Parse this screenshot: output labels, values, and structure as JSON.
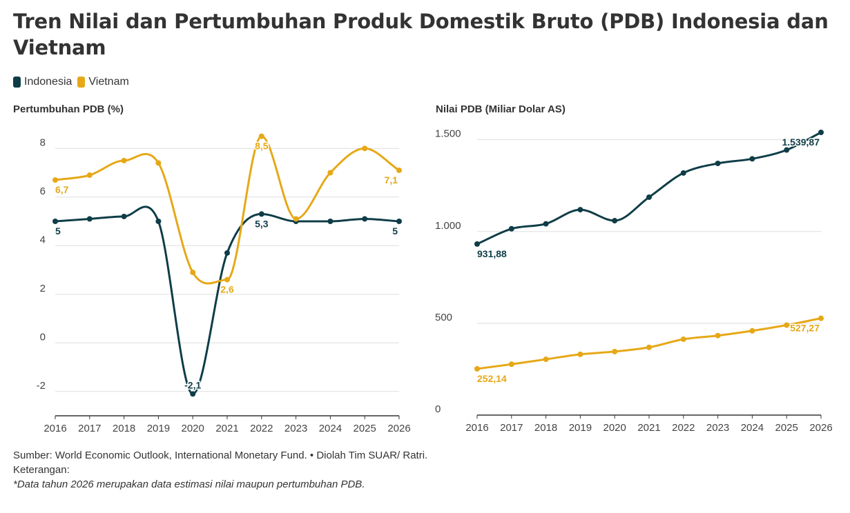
{
  "title": "Tren Nilai dan Pertumbuhan Produk Domestik Bruto (PDB) Indonesia dan Vietnam",
  "colors": {
    "indonesia": "#0f3d47",
    "vietnam": "#e6a817",
    "grid": "#dddddd",
    "axis": "#333333"
  },
  "legend": [
    {
      "label": "Indonesia",
      "color": "#0f3d47"
    },
    {
      "label": "Vietnam",
      "color": "#e6a817"
    }
  ],
  "chart_data": [
    {
      "type": "line",
      "title": "Pertumbuhan PDB (%)",
      "x": [
        2016,
        2017,
        2018,
        2019,
        2020,
        2021,
        2022,
        2023,
        2024,
        2025,
        2026
      ],
      "ylim": [
        -3,
        9
      ],
      "yticks": [
        -2,
        0,
        2,
        4,
        6,
        8
      ],
      "ytick_labels": [
        "-2",
        "0",
        "2",
        "4",
        "6",
        "8"
      ],
      "grid": true,
      "series": [
        {
          "name": "Indonesia",
          "values": [
            5.0,
            5.1,
            5.2,
            5.0,
            -2.1,
            3.7,
            5.3,
            5.0,
            5.0,
            5.1,
            5.0
          ],
          "labels": [
            {
              "index": 0,
              "text": "5",
              "pos": "below"
            },
            {
              "index": 4,
              "text": "-2,1",
              "pos": "above"
            },
            {
              "index": 6,
              "text": "5,3",
              "pos": "below"
            },
            {
              "index": 10,
              "text": "5",
              "pos": "below"
            }
          ]
        },
        {
          "name": "Vietnam",
          "values": [
            6.7,
            6.9,
            7.5,
            7.4,
            2.9,
            2.6,
            8.5,
            5.1,
            7.0,
            8.0,
            7.1
          ],
          "labels": [
            {
              "index": 0,
              "text": "6,7",
              "pos": "below"
            },
            {
              "index": 5,
              "text": "2,6",
              "pos": "below"
            },
            {
              "index": 6,
              "text": "8,5",
              "pos": "below"
            },
            {
              "index": 10,
              "text": "7,1",
              "pos": "below"
            }
          ]
        }
      ]
    },
    {
      "type": "line",
      "title": "Nilai PDB (Miliar Dolar AS)",
      "x": [
        2016,
        2017,
        2018,
        2019,
        2020,
        2021,
        2022,
        2023,
        2024,
        2025,
        2026
      ],
      "ylim": [
        0,
        1600
      ],
      "yticks": [
        0,
        500,
        1000,
        1500
      ],
      "ytick_labels": [
        "0",
        "500",
        "1.000",
        "1.500"
      ],
      "grid": true,
      "series": [
        {
          "name": "Indonesia",
          "values": [
            931.88,
            1015,
            1042,
            1119,
            1059,
            1187,
            1319,
            1371,
            1396,
            1444,
            1539.87
          ],
          "labels": [
            {
              "index": 0,
              "text": "931,88",
              "pos": "below"
            },
            {
              "index": 10,
              "text": "1.539,87",
              "pos": "below"
            }
          ]
        },
        {
          "name": "Vietnam",
          "values": [
            252.14,
            277,
            304,
            331,
            346,
            369,
            413,
            433,
            459,
            490,
            527.27
          ],
          "labels": [
            {
              "index": 0,
              "text": "252,14",
              "pos": "below"
            },
            {
              "index": 10,
              "text": "527,27",
              "pos": "below"
            }
          ]
        }
      ]
    }
  ],
  "footer": {
    "source": "Sumber: World Economic Outlook, International Monetary Fund. • Diolah Tim SUAR/ Ratri.",
    "keterangan": "Keterangan:",
    "note": "*Data tahun 2026 merupakan data estimasi nilai maupun pertumbuhan PDB."
  }
}
